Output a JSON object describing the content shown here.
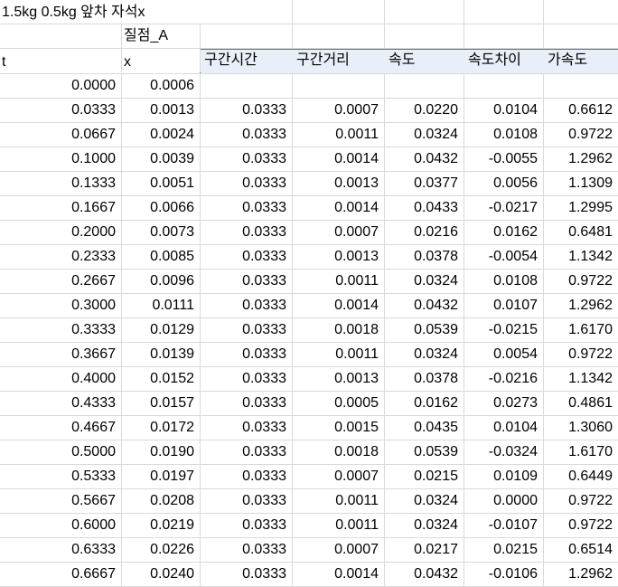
{
  "sheet": {
    "title": "1.5kg 0.5kg 앞차 자석x",
    "object_label": "질점_A",
    "col_t": "t",
    "col_x": "x",
    "headers": [
      "구간시간",
      "구간거리",
      "속도",
      "속도차이",
      "가속도"
    ],
    "first_row": {
      "t": "0.0000",
      "x": "0.0006"
    },
    "rows": [
      [
        "0.0333",
        "0.0013",
        "0.0333",
        "0.0007",
        "0.0220",
        "0.0104",
        "0.6612"
      ],
      [
        "0.0667",
        "0.0024",
        "0.0333",
        "0.0011",
        "0.0324",
        "0.0108",
        "0.9722"
      ],
      [
        "0.1000",
        "0.0039",
        "0.0333",
        "0.0014",
        "0.0432",
        "-0.0055",
        "1.2962"
      ],
      [
        "0.1333",
        "0.0051",
        "0.0333",
        "0.0013",
        "0.0377",
        "0.0056",
        "1.1309"
      ],
      [
        "0.1667",
        "0.0066",
        "0.0333",
        "0.0014",
        "0.0433",
        "-0.0217",
        "1.2995"
      ],
      [
        "0.2000",
        "0.0073",
        "0.0333",
        "0.0007",
        "0.0216",
        "0.0162",
        "0.6481"
      ],
      [
        "0.2333",
        "0.0085",
        "0.0333",
        "0.0013",
        "0.0378",
        "-0.0054",
        "1.1342"
      ],
      [
        "0.2667",
        "0.0096",
        "0.0333",
        "0.0011",
        "0.0324",
        "0.0108",
        "0.9722"
      ],
      [
        "0.3000",
        "0.0111",
        "0.0333",
        "0.0014",
        "0.0432",
        "0.0107",
        "1.2962"
      ],
      [
        "0.3333",
        "0.0129",
        "0.0333",
        "0.0018",
        "0.0539",
        "-0.0215",
        "1.6170"
      ],
      [
        "0.3667",
        "0.0139",
        "0.0333",
        "0.0011",
        "0.0324",
        "0.0054",
        "0.9722"
      ],
      [
        "0.4000",
        "0.0152",
        "0.0333",
        "0.0013",
        "0.0378",
        "-0.0216",
        "1.1342"
      ],
      [
        "0.4333",
        "0.0157",
        "0.0333",
        "0.0005",
        "0.0162",
        "0.0273",
        "0.4861"
      ],
      [
        "0.4667",
        "0.0172",
        "0.0333",
        "0.0015",
        "0.0435",
        "0.0104",
        "1.3060"
      ],
      [
        "0.5000",
        "0.0190",
        "0.0333",
        "0.0018",
        "0.0539",
        "-0.0324",
        "1.6170"
      ],
      [
        "0.5333",
        "0.0197",
        "0.0333",
        "0.0007",
        "0.0215",
        "0.0109",
        "0.6449"
      ],
      [
        "0.5667",
        "0.0208",
        "0.0333",
        "0.0011",
        "0.0324",
        "0.0000",
        "0.9722"
      ],
      [
        "0.6000",
        "0.0219",
        "0.0333",
        "0.0011",
        "0.0324",
        "-0.0107",
        "0.9722"
      ],
      [
        "0.6333",
        "0.0226",
        "0.0333",
        "0.0007",
        "0.0217",
        "0.0215",
        "0.6514"
      ],
      [
        "0.6667",
        "0.0240",
        "0.0333",
        "0.0014",
        "0.0432",
        "-0.0106",
        "1.2962"
      ]
    ],
    "colors": {
      "gridline": "#d9d9d9",
      "header_fill": "#e9eef9",
      "header_border": "#4472c4"
    }
  }
}
